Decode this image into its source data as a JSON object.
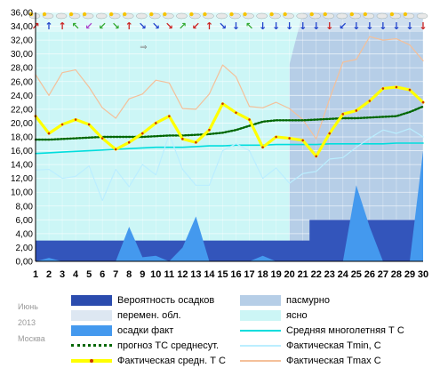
{
  "chart_data": {
    "type": "line",
    "x": [
      1,
      2,
      3,
      4,
      5,
      6,
      7,
      8,
      9,
      10,
      11,
      12,
      13,
      14,
      15,
      16,
      17,
      18,
      19,
      20,
      21,
      22,
      23,
      24,
      25,
      26,
      27,
      28,
      29,
      30
    ],
    "ylim": [
      0,
      36
    ],
    "yticks": [
      "0,00",
      "2,00",
      "4,00",
      "6,00",
      "8,00",
      "10,00",
      "12,00",
      "14,00",
      "16,00",
      "18,00",
      "20,00",
      "22,00",
      "24,00",
      "26,00",
      "28,00",
      "30,00",
      "32,00",
      "34,00",
      "36,00"
    ],
    "series": [
      {
        "name": "Вероятность осадков",
        "type": "area",
        "color": "#3355bb",
        "values": [
          3,
          3,
          3,
          3,
          3,
          3,
          3,
          3,
          3,
          3,
          3,
          3,
          3,
          3,
          3,
          3,
          3,
          3,
          3,
          3,
          3,
          6,
          6,
          6,
          6,
          6,
          6,
          6,
          6,
          6
        ]
      },
      {
        "name": "осадки факт",
        "type": "area",
        "color": "#4499ee",
        "values": [
          0,
          0.5,
          0,
          0,
          0,
          0,
          0,
          5,
          0.6,
          0.8,
          0,
          2,
          6.5,
          0,
          0,
          0,
          0,
          0.8,
          0,
          0,
          0,
          0,
          0,
          0,
          11,
          5,
          0,
          0,
          0,
          16
        ]
      },
      {
        "name": "прогноз ТС среднесут.",
        "type": "line",
        "color": "#006600",
        "values": [
          17.6,
          17.6,
          17.7,
          17.8,
          17.9,
          18.0,
          18.0,
          18.0,
          18.0,
          18.1,
          18.2,
          18.2,
          18.3,
          18.4,
          18.6,
          19.0,
          19.6,
          20.2,
          20.4,
          20.4,
          20.4,
          20.5,
          20.6,
          20.7,
          20.7,
          20.8,
          20.9,
          21.0,
          21.6,
          22.4
        ]
      },
      {
        "name": "Средняя многолетняя Т С",
        "type": "line",
        "color": "#00dddd",
        "values": [
          15.6,
          15.7,
          15.8,
          15.9,
          16.0,
          16.1,
          16.2,
          16.3,
          16.4,
          16.5,
          16.5,
          16.5,
          16.6,
          16.7,
          16.7,
          16.8,
          16.8,
          16.8,
          16.9,
          16.9,
          16.9,
          16.9,
          17.0,
          17.0,
          17.0,
          17.0,
          17.0,
          17.1,
          17.1,
          17.1
        ]
      },
      {
        "name": "Фактическая Tmin, C",
        "type": "line",
        "color": "#bbeeff",
        "values": [
          13.2,
          13.3,
          12.0,
          12.3,
          13.8,
          8.8,
          13.3,
          10.8,
          14.0,
          12.5,
          18.4,
          13.3,
          11.0,
          11.0,
          16.0,
          17.0,
          16.0,
          12.0,
          13.5,
          11.3,
          12.7,
          13.0,
          14.8,
          15.0,
          16.5,
          17.8,
          19.0,
          18.5,
          19.2,
          18.0
        ]
      },
      {
        "name": "Фактическая Tmax C",
        "type": "line",
        "color": "#f4c09a",
        "values": [
          27.0,
          24.0,
          27.3,
          27.7,
          25.2,
          22.2,
          20.7,
          23.5,
          24.2,
          26.2,
          25.8,
          22.1,
          22.0,
          24.2,
          28.4,
          26.7,
          22.4,
          22.2,
          23.0,
          22.1,
          20.5,
          17.7,
          23.5,
          28.8,
          29.2,
          32.5,
          32.0,
          32.2,
          31.3,
          29.0
        ]
      },
      {
        "name": "Фактическая средн. Т С",
        "type": "line",
        "color": "#ffff00",
        "values": [
          21.0,
          18.5,
          19.8,
          20.5,
          19.8,
          17.8,
          16.2,
          17.2,
          18.5,
          20.0,
          21.0,
          17.7,
          17.2,
          19.0,
          22.8,
          21.5,
          20.5,
          16.5,
          18.0,
          17.8,
          17.5,
          15.2,
          18.5,
          21.3,
          21.8,
          23.2,
          25.0,
          25.2,
          24.8,
          23.0
        ]
      }
    ],
    "sky": {
      "ясно": "#ccf6f6",
      "перемен. обл.": "#dde7f2",
      "пасмурно": "#b6cee7",
      "bands_by_day": [
        "ясно",
        "ясно",
        "ясно",
        "ясно",
        "ясно",
        "ясно",
        "ясно",
        "ясно",
        "ясно",
        "ясно",
        "ясно",
        "ясно",
        "ясно",
        "ясно",
        "ясно",
        "ясно",
        "ясно",
        "ясно",
        "ясно",
        "ясно",
        "пасмурно",
        "пасмурно",
        "пасмурно",
        "пасмурно",
        "пасмурно",
        "пасмурно",
        "пасмурно",
        "пасмурно",
        "пасмурно",
        "пасмурно"
      ]
    },
    "wind_arrows": [
      "↗",
      "↑",
      "↑",
      "↖",
      "↙",
      "↙",
      "↘",
      "↑",
      "↘",
      "↘",
      "↘",
      "↗",
      "↙",
      "↑",
      "↘",
      "↓",
      "↖",
      "↓",
      "↓",
      "↓",
      "↓",
      "↓",
      "↓",
      "↙",
      "↓",
      "↓",
      "↓",
      "↓",
      "↓",
      "↓"
    ],
    "wind_colors": [
      "#cc2222",
      "#2244cc",
      "#cc2222",
      "#33aa33",
      "#aa44cc",
      "#33aa33",
      "#33aa33",
      "#cc2222",
      "#2244cc",
      "#2244cc",
      "#cc2222",
      "#33aa33",
      "#cc2222",
      "#cc2222",
      "#2244cc",
      "#2244cc",
      "#33aa33",
      "#2244cc",
      "#2244cc",
      "#2244cc",
      "#2244cc",
      "#2244cc",
      "#cc2222",
      "#2244cc",
      "#2244cc",
      "#2244cc",
      "#2244cc",
      "#2244cc",
      "#2244cc",
      "#cc2222"
    ]
  },
  "legend": {
    "items": [
      {
        "label": "Вероятность осадков",
        "kind": "box",
        "color": "#2b4cae"
      },
      {
        "label": "пасмурно",
        "kind": "box",
        "color": "#b6cee7"
      },
      {
        "label": "перемен. обл.",
        "kind": "box",
        "color": "#dde7f2"
      },
      {
        "label": "ясно",
        "kind": "box",
        "color": "#ccf6f6"
      },
      {
        "label": "осадки факт",
        "kind": "box",
        "color": "#4499ee"
      },
      {
        "label": "Средняя многолетняя Т С",
        "kind": "line",
        "color": "#00dddd"
      },
      {
        "label": "прогноз ТС среднесут.",
        "kind": "dots",
        "color": "#006600"
      },
      {
        "label": "Фактическая Tmin, C",
        "kind": "line",
        "color": "#bbeeff"
      },
      {
        "label": "Фактическая средн. Т С",
        "kind": "thick",
        "color": "#ffff00"
      },
      {
        "label": "Фактическая Tmax C",
        "kind": "line",
        "color": "#f4c09a"
      }
    ]
  },
  "note": {
    "month": "Июнь",
    "year": "2013",
    "city": "Москва"
  }
}
